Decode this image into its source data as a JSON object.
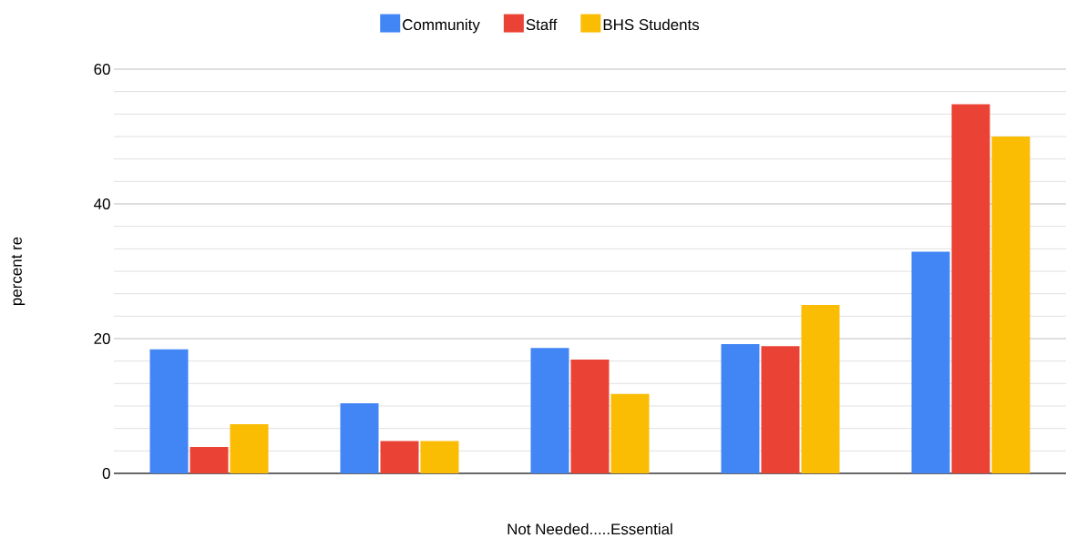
{
  "chart_data": {
    "type": "bar",
    "xlabel": "Not Needed.....Essential",
    "ylabel": "percent re",
    "categories": [
      null,
      null,
      null,
      null,
      null
    ],
    "series": [
      {
        "name": "Community",
        "color": "#4285f4",
        "values": [
          18.4,
          10.4,
          18.6,
          19.2,
          32.9
        ]
      },
      {
        "name": "Staff",
        "color": "#ea4335",
        "values": [
          3.9,
          4.8,
          16.9,
          18.9,
          54.8
        ]
      },
      {
        "name": "BHS Students",
        "color": "#fbbc04",
        "values": [
          7.3,
          4.8,
          11.8,
          25.0,
          50.0
        ]
      }
    ],
    "ylim": [
      0,
      60
    ],
    "yticks": [
      0,
      20,
      40,
      60
    ],
    "grid": "y",
    "legend": "top"
  }
}
